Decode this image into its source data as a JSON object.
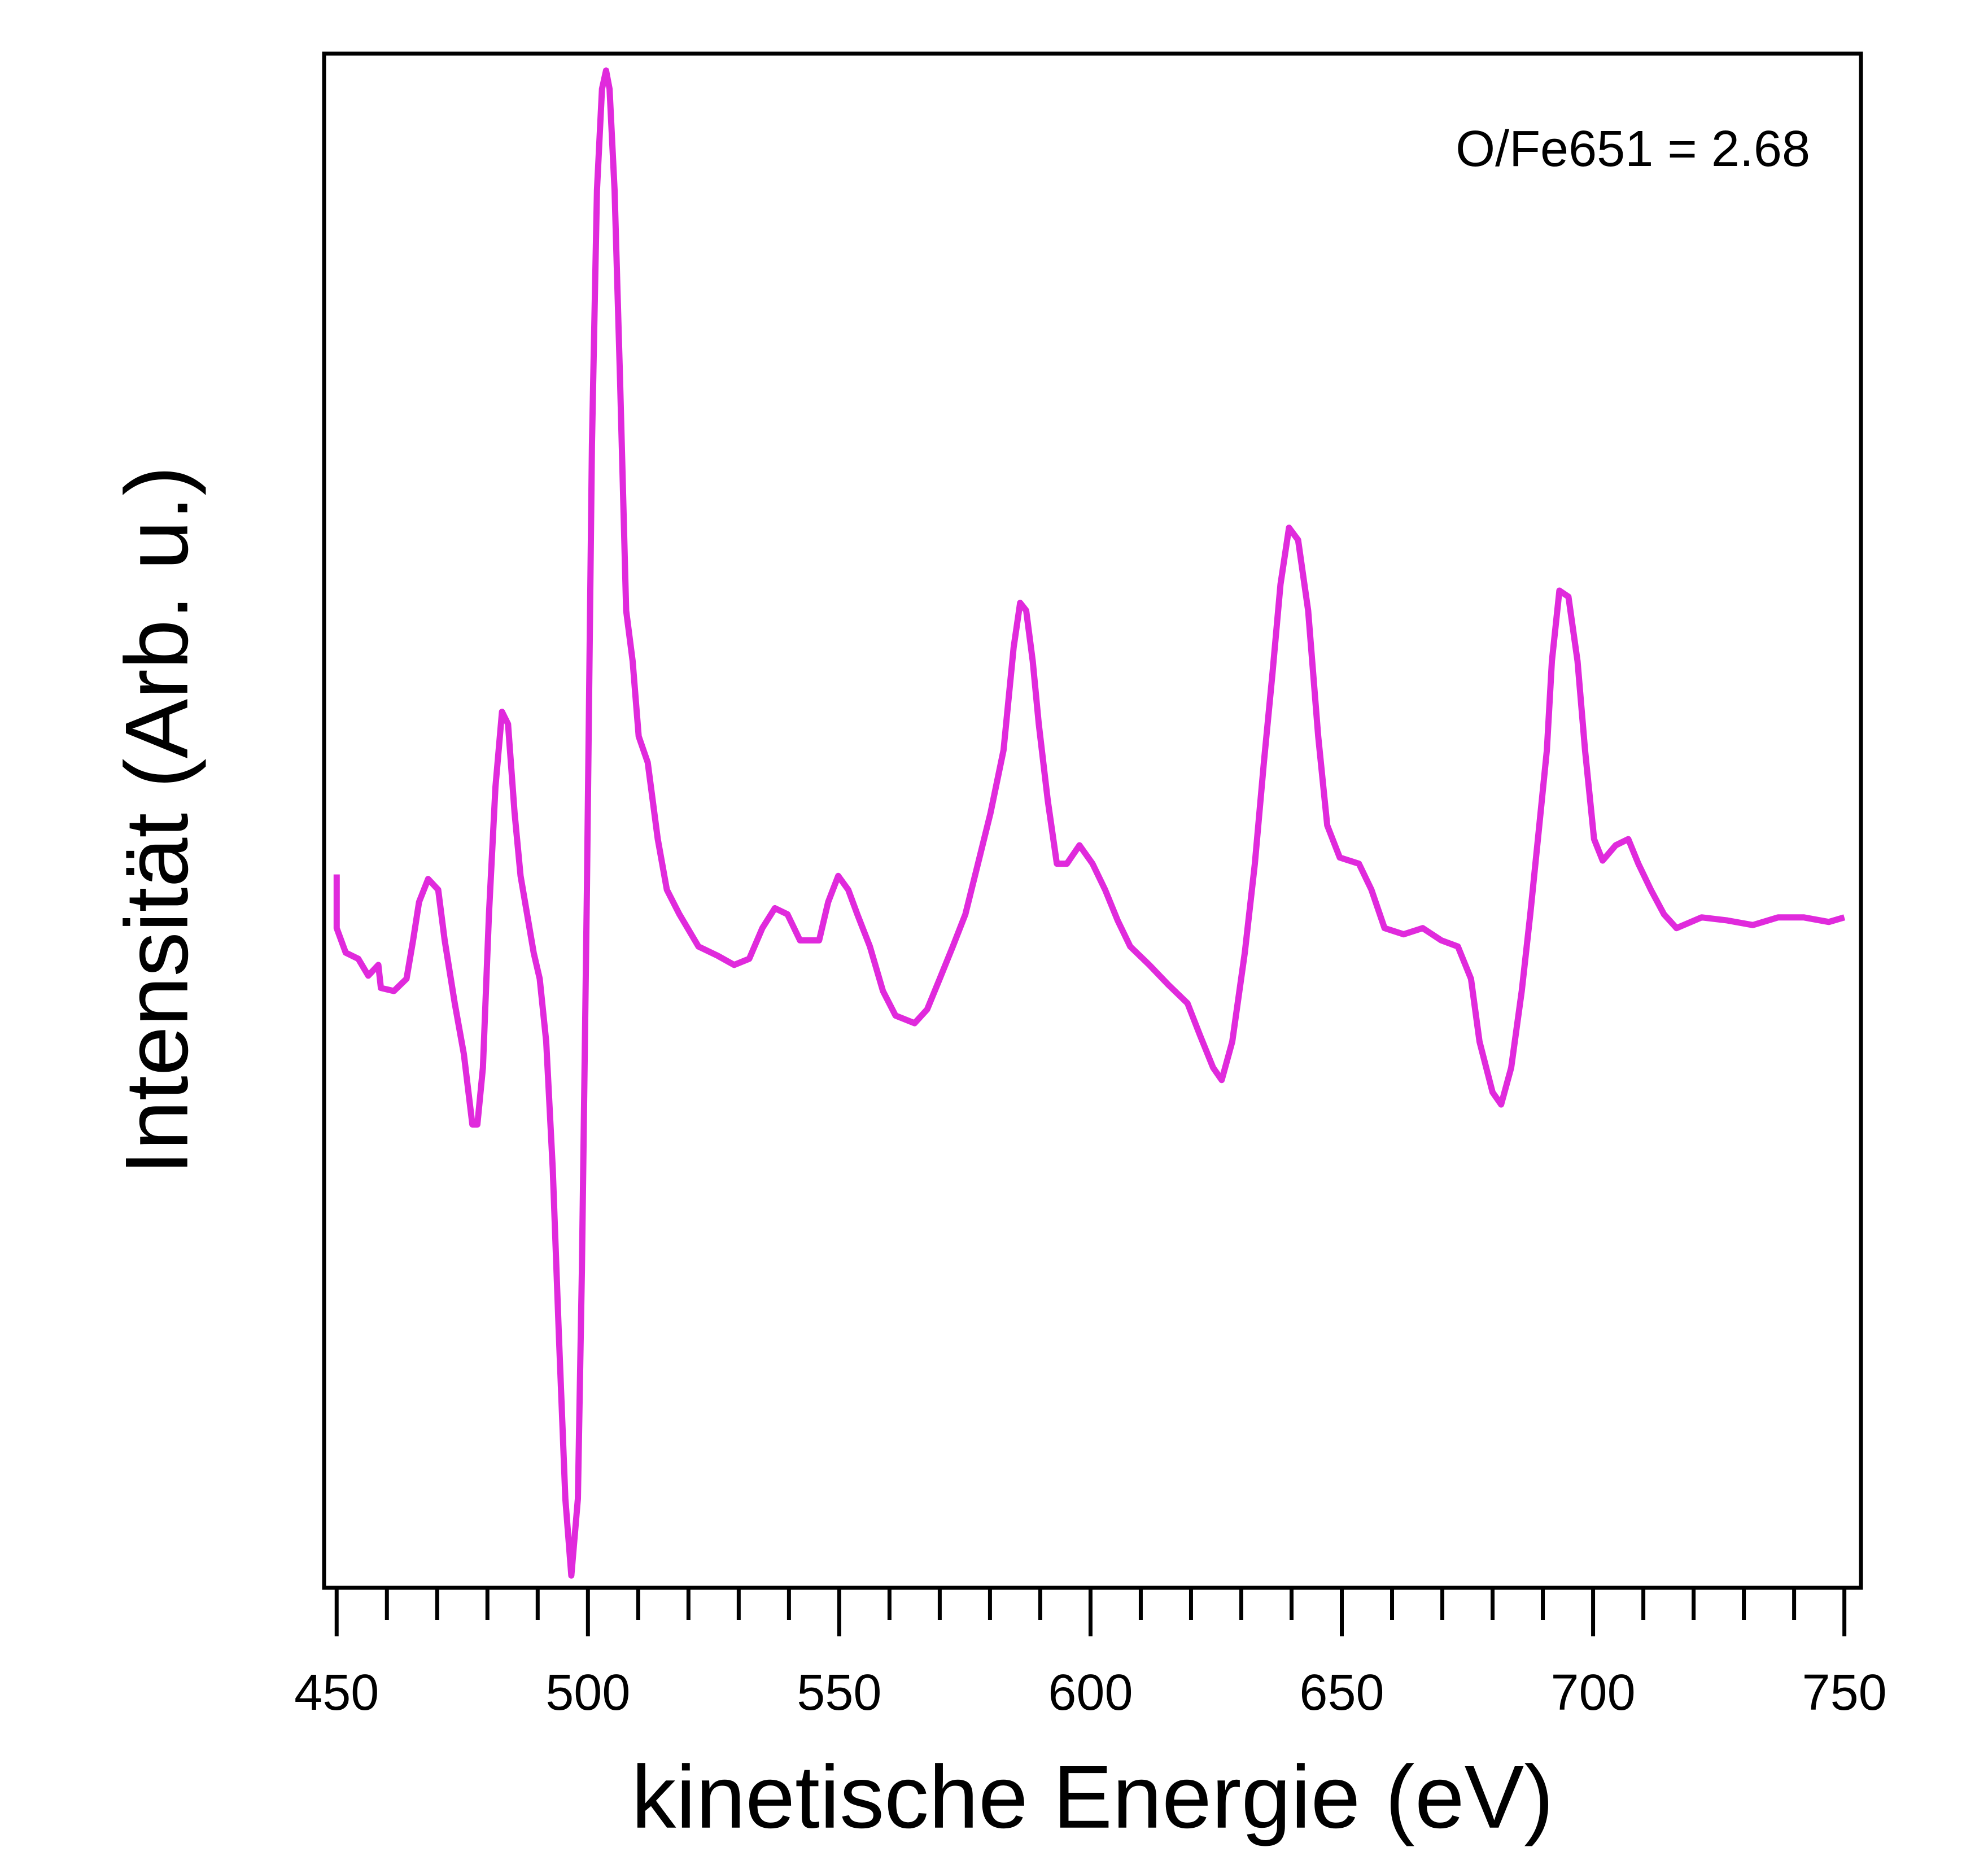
{
  "chart_data": {
    "type": "line",
    "xlabel": "kinetische Energie (eV)",
    "ylabel": "Intensität (Arb. u.)",
    "annotation": "O/Fe651 = 2.68",
    "xlim": [
      447.5,
      753.3
    ],
    "ylim": [
      0,
      100
    ],
    "xticks": [
      450,
      500,
      550,
      600,
      650,
      700,
      750
    ],
    "xminorticks": [
      460,
      470,
      480,
      490,
      510,
      520,
      530,
      540,
      560,
      570,
      580,
      590,
      610,
      620,
      630,
      640,
      660,
      670,
      680,
      690,
      710,
      720,
      730,
      740
    ],
    "series": [
      {
        "color": "#e02adc",
        "x": [
          450.0,
          450.0,
          451.8,
          454.3,
          456.3,
          458.3,
          458.8,
          461.4,
          463.9,
          465.2,
          466.4,
          468.2,
          470.2,
          471.5,
          473.5,
          475.3,
          477.0,
          478.0,
          479.1,
          480.3,
          481.6,
          482.9,
          484.1,
          485.4,
          486.6,
          487.9,
          489.2,
          490.4,
          491.7,
          493.0,
          494.2,
          495.5,
          496.7,
          498.0,
          498.8,
          499.8,
          500.8,
          501.8,
          502.8,
          503.6,
          504.3,
          505.3,
          506.4,
          507.6,
          508.9,
          510.1,
          511.9,
          513.9,
          515.7,
          518.2,
          522.0,
          525.8,
          529.1,
          532.1,
          534.7,
          537.2,
          539.7,
          542.2,
          546.0,
          547.8,
          549.8,
          551.8,
          553.6,
          556.1,
          558.7,
          561.2,
          565.0,
          567.5,
          570.0,
          572.6,
          575.1,
          577.6,
          580.1,
          582.7,
          584.7,
          586.0,
          587.2,
          588.5,
          589.7,
          591.5,
          593.3,
          595.3,
          597.8,
          600.4,
          602.9,
          605.4,
          607.9,
          611.7,
          615.5,
          619.3,
          621.8,
          624.4,
          626.1,
          628.2,
          630.7,
          632.7,
          634.5,
          636.2,
          637.8,
          639.5,
          641.3,
          643.3,
          645.3,
          647.1,
          649.6,
          653.4,
          655.9,
          658.5,
          662.3,
          666.1,
          669.8,
          673.1,
          675.7,
          677.4,
          680.0,
          681.7,
          683.7,
          685.8,
          687.5,
          689.3,
          690.8,
          691.8,
          693.3,
          695.1,
          696.9,
          698.4,
          700.2,
          701.9,
          704.5,
          707.0,
          709.0,
          711.5,
          714.1,
          716.6,
          721.6,
          726.7,
          731.8,
          736.8,
          741.9,
          746.9,
          750.0
        ],
        "values": [
          46.5,
          43.0,
          41.4,
          41.0,
          39.9,
          40.6,
          39.1,
          38.9,
          39.7,
          42.2,
          44.7,
          46.2,
          45.5,
          42.2,
          38.1,
          34.8,
          30.2,
          30.2,
          33.9,
          43.9,
          52.2,
          57.1,
          56.3,
          50.5,
          46.4,
          43.9,
          41.4,
          39.7,
          35.6,
          27.3,
          16.6,
          5.8,
          0.8,
          5.8,
          20.7,
          45.5,
          74.5,
          91.1,
          97.7,
          98.9,
          97.7,
          91.1,
          78.6,
          63.7,
          60.4,
          55.5,
          53.8,
          48.8,
          45.5,
          43.9,
          41.8,
          41.2,
          40.6,
          41.0,
          43.0,
          44.3,
          43.9,
          42.2,
          42.2,
          44.7,
          46.4,
          45.5,
          43.9,
          41.8,
          38.9,
          37.3,
          36.8,
          37.7,
          39.7,
          41.8,
          43.9,
          47.2,
          50.5,
          54.6,
          61.3,
          64.2,
          63.7,
          60.4,
          56.3,
          51.3,
          47.2,
          47.2,
          48.4,
          47.2,
          45.5,
          43.5,
          41.8,
          40.6,
          39.3,
          38.1,
          36.0,
          33.9,
          33.1,
          35.6,
          41.4,
          47.2,
          53.8,
          59.6,
          65.4,
          69.1,
          68.3,
          63.7,
          55.5,
          49.7,
          47.6,
          47.2,
          45.5,
          43.0,
          42.6,
          43.0,
          42.2,
          41.8,
          39.7,
          35.6,
          32.3,
          31.5,
          33.9,
          38.9,
          43.9,
          49.7,
          54.6,
          60.4,
          65.0,
          64.6,
          60.4,
          54.6,
          48.8,
          47.4,
          48.4,
          48.8,
          47.2,
          45.5,
          43.9,
          43.0,
          43.7,
          43.5,
          43.2,
          43.7,
          43.7,
          43.4,
          43.7
        ]
      }
    ]
  }
}
